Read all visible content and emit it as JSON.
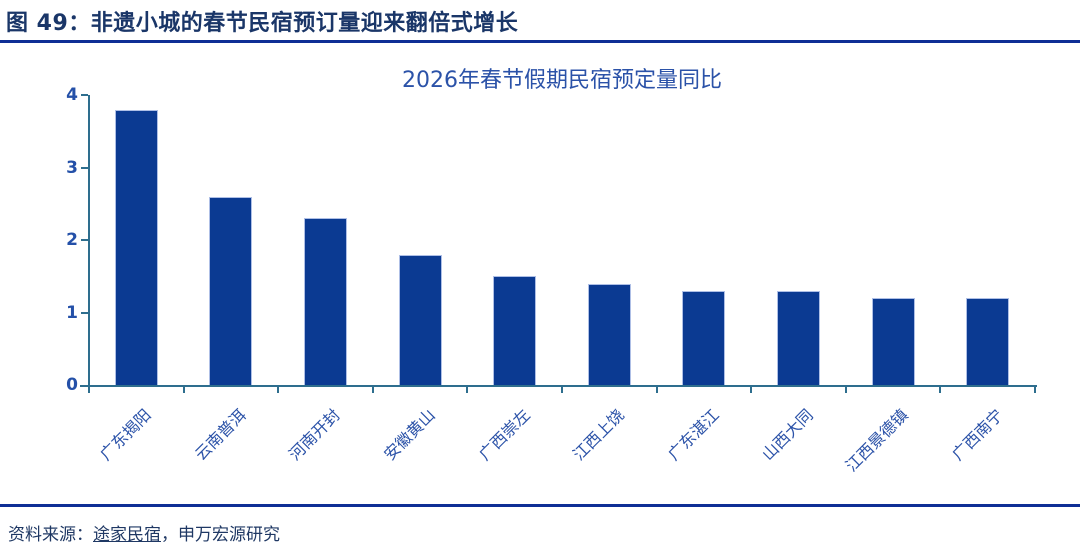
{
  "figure": {
    "caption": "图 49：非遗小城的春节民宿预订量迎来翻倍式增长"
  },
  "source": {
    "prefix": "资料来源：",
    "link": "途家民宿",
    "suffix": "，申万宏源研究"
  },
  "colors": {
    "caption_text": "#1A3668",
    "rule": "#0E2E95",
    "chart_text": "#2B52A8",
    "bar_fill": "#0B3A92",
    "bar_border": "#AEBFE6",
    "axis_line": "#2E6E8E"
  },
  "chart_data": {
    "type": "bar",
    "title": "2026年春节假期民宿预定量同比",
    "categories": [
      "广东揭阳",
      "云南普洱",
      "河南开封",
      "安徽黄山",
      "广西崇左",
      "江西上饶",
      "广东湛江",
      "山西大同",
      "江西景德镇",
      "广西南宁"
    ],
    "values": [
      3.8,
      2.6,
      2.3,
      1.8,
      1.5,
      1.4,
      1.3,
      1.3,
      1.2,
      1.2
    ],
    "xlabel": "",
    "ylabel": "",
    "ylim": [
      0,
      4
    ],
    "yticks": [
      0,
      1,
      2,
      3,
      4
    ],
    "grid": false,
    "legend": null
  }
}
